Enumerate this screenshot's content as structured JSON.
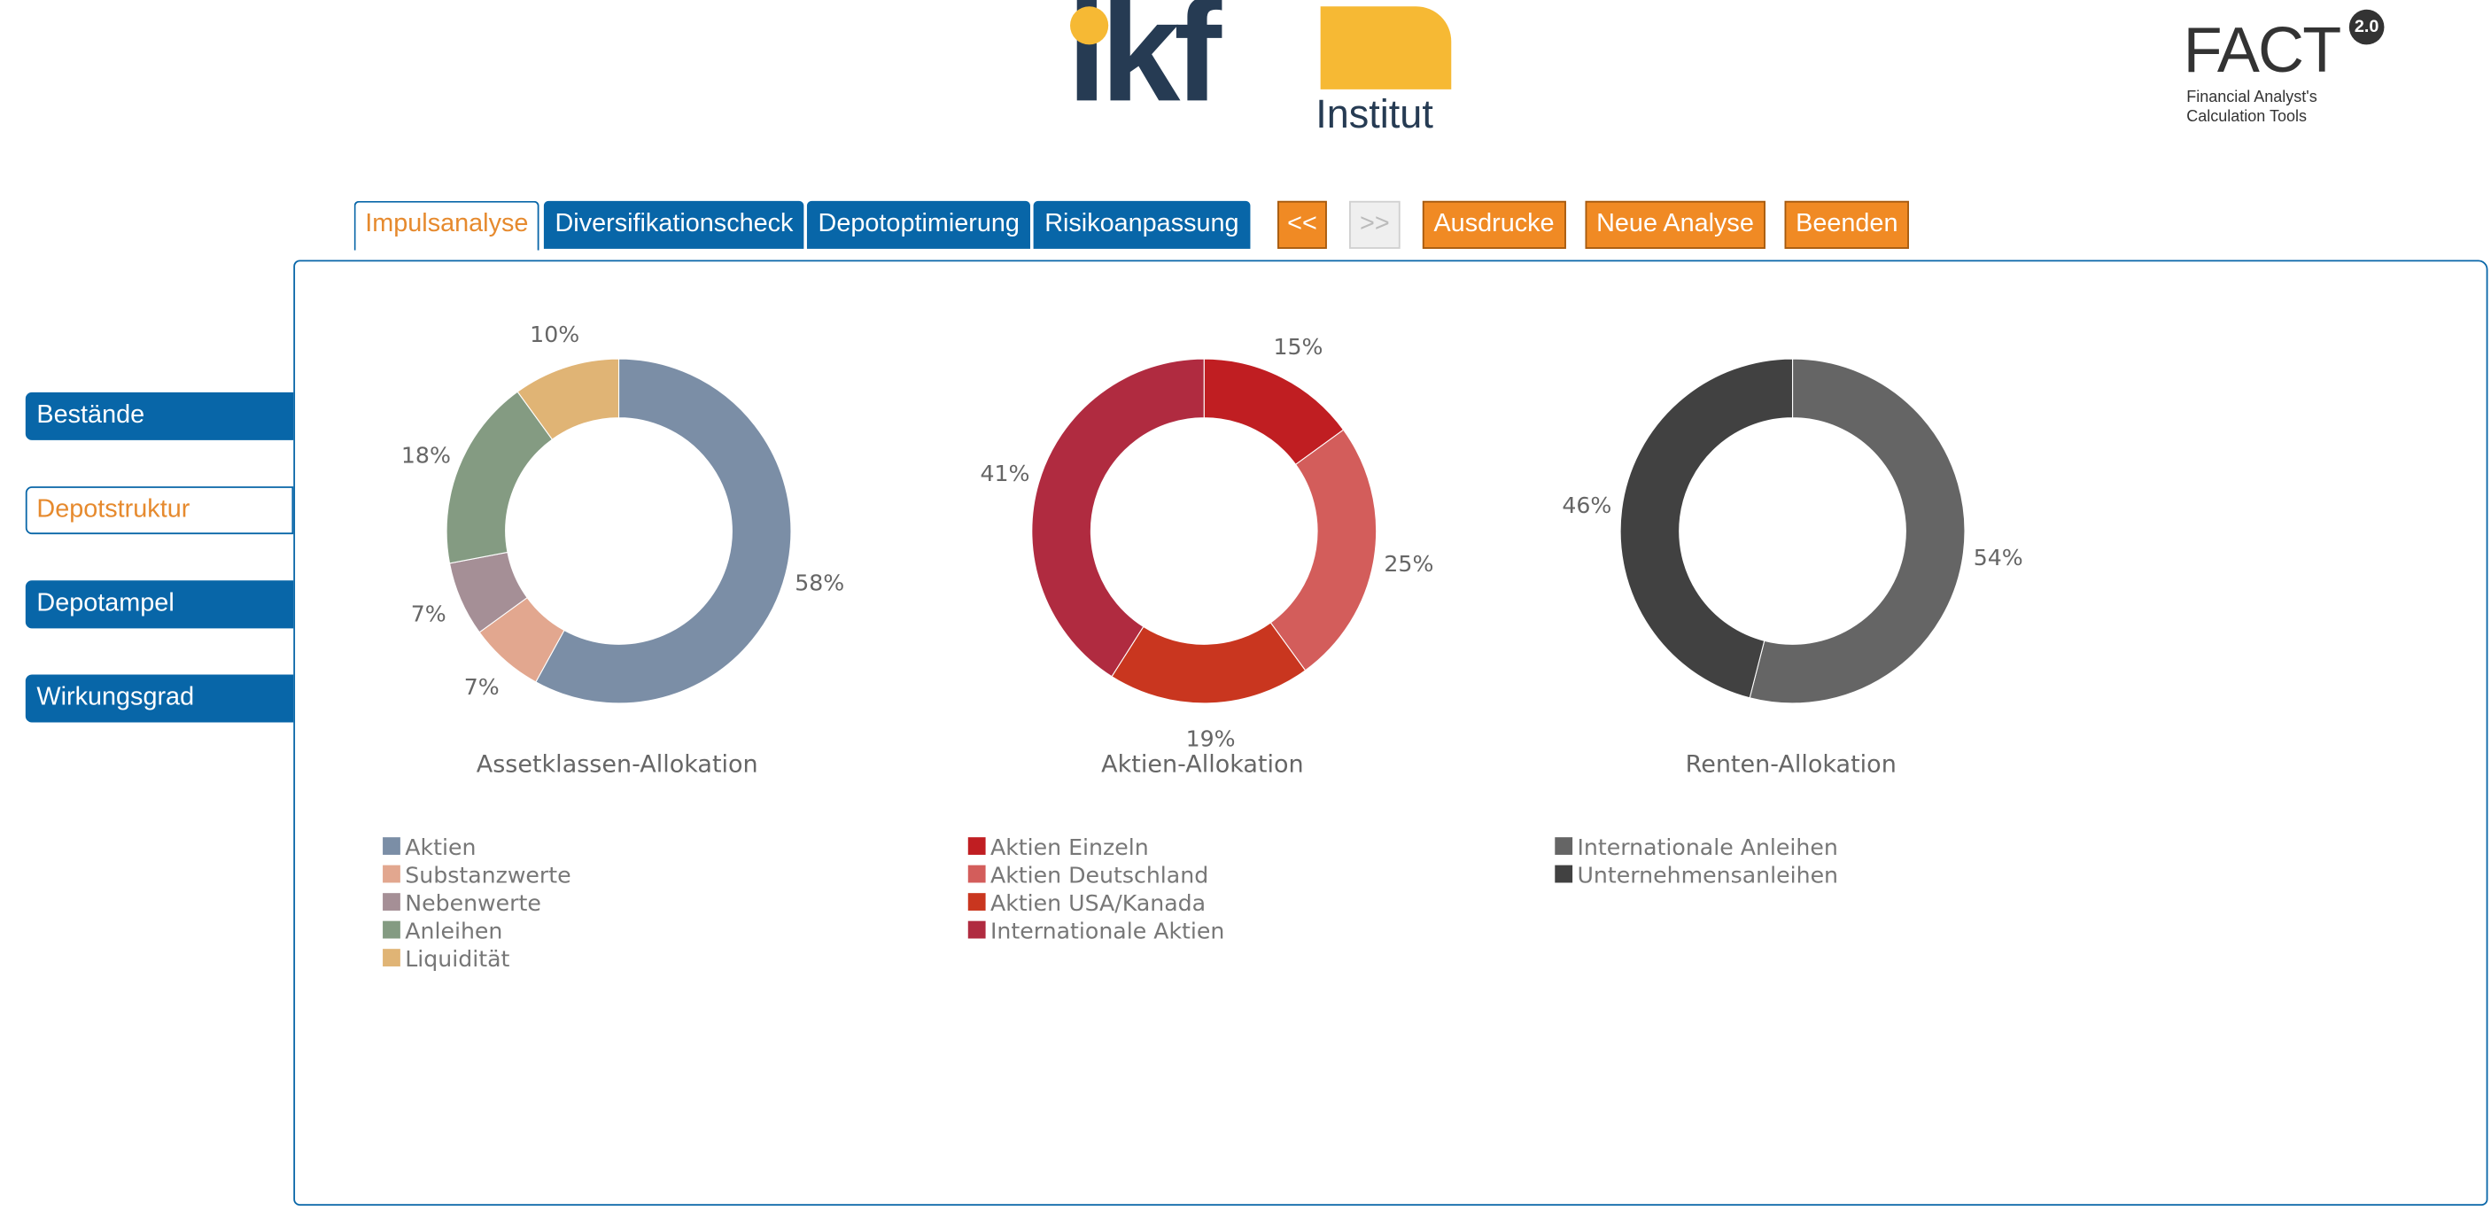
{
  "header": {
    "ikf_logo": {
      "text": "ikf",
      "subtitle": "Institut",
      "colors": {
        "dark": "#263b53",
        "accent": "#f6b934"
      }
    },
    "fact_logo": {
      "text": "FACT",
      "version": "2.0",
      "subtitle_line1": "Financial Analyst's",
      "subtitle_line2": "Calculation Tools"
    }
  },
  "tabs": [
    {
      "label": "Impulsanalyse",
      "active": true
    },
    {
      "label": "Diversifikationscheck",
      "active": false
    },
    {
      "label": "Depotoptimierung",
      "active": false
    },
    {
      "label": "Risikoanpassung",
      "active": false
    }
  ],
  "actions": {
    "prev": "<<",
    "next": ">>",
    "print": "Ausdrucke",
    "new_analysis": "Neue Analyse",
    "quit": "Beenden"
  },
  "sidebar": [
    {
      "label": "Bestände",
      "active": false
    },
    {
      "label": "Depotstruktur",
      "active": true
    },
    {
      "label": "Depotampel",
      "active": false
    },
    {
      "label": "Wirkungsgrad",
      "active": false
    }
  ],
  "colors": {
    "primary": "#0866a8",
    "accent": "#f08a24",
    "active_text": "#e68a2e"
  },
  "chart_data": [
    {
      "type": "pie",
      "variant": "donut",
      "title": "Assetklassen-Allokation",
      "slices": [
        {
          "label": "Aktien",
          "value": 58,
          "color": "#7b8ea6"
        },
        {
          "label": "Substanzwerte",
          "value": 7,
          "color": "#e2a78f"
        },
        {
          "label": "Nebenwerte",
          "value": 7,
          "color": "#a58f96"
        },
        {
          "label": "Anleihen",
          "value": 18,
          "color": "#849b82"
        },
        {
          "label": "Liquidität",
          "value": 10,
          "color": "#e0b475"
        }
      ]
    },
    {
      "type": "pie",
      "variant": "donut",
      "title": "Aktien-Allokation",
      "slices": [
        {
          "label": "Aktien Einzeln",
          "value": 15,
          "color": "#c01e22"
        },
        {
          "label": "Aktien Deutschland",
          "value": 25,
          "color": "#d35d5b"
        },
        {
          "label": "Aktien USA/Kanada",
          "value": 19,
          "color": "#c9361f"
        },
        {
          "label": "Internationale Aktien",
          "value": 41,
          "color": "#b02b40"
        }
      ]
    },
    {
      "type": "pie",
      "variant": "donut",
      "title": "Renten-Allokation",
      "slices": [
        {
          "label": "Internationale Anleihen",
          "value": 54,
          "color": "#656565"
        },
        {
          "label": "Unternehmensanleihen",
          "value": 46,
          "color": "#414141"
        }
      ]
    }
  ]
}
